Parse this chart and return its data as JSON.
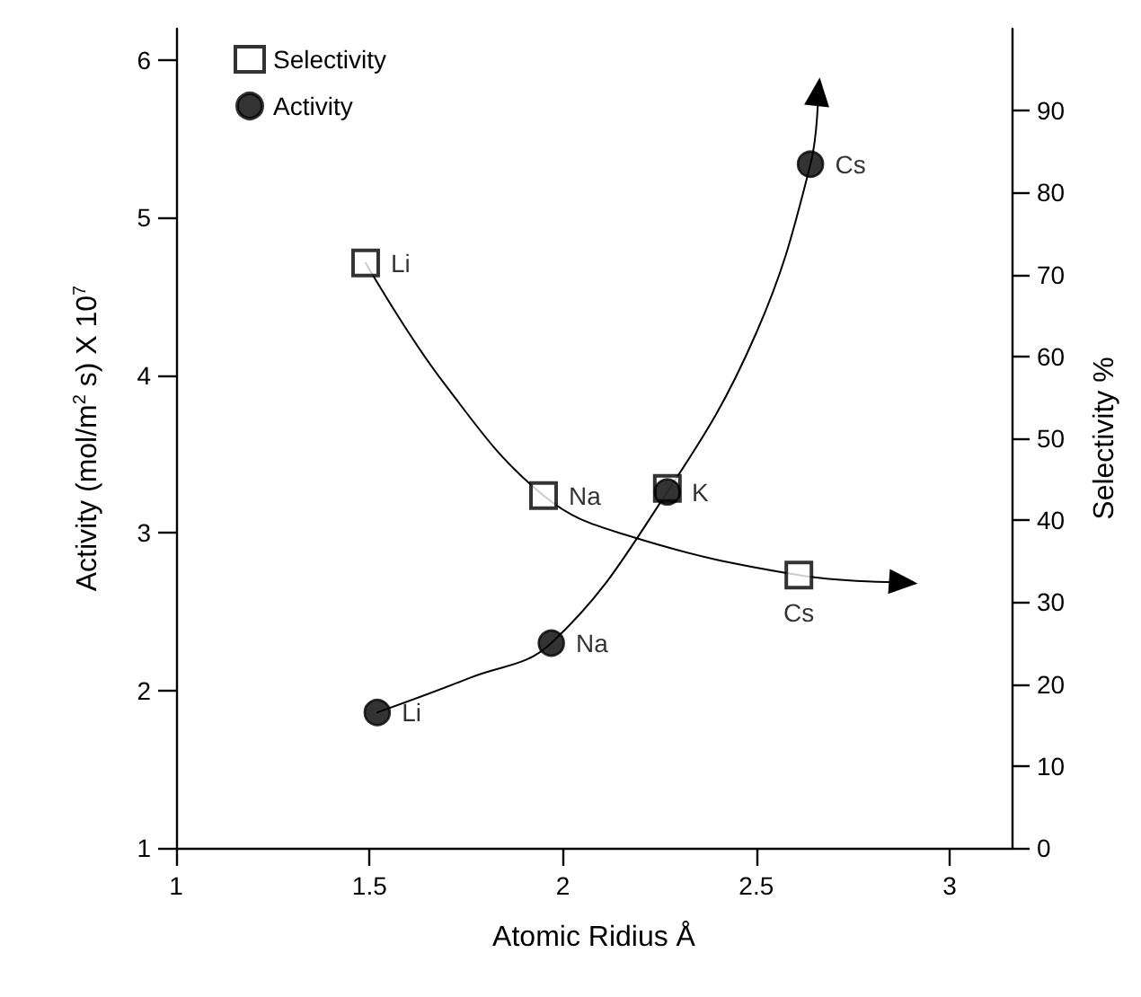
{
  "chart_data": {
    "type": "scatter",
    "xlabel": "Atomic Ridius Å",
    "ylabel": "Activity (mol/m$^{2}$ s) X 10$^{7}$",
    "y2label": "Selectivity %",
    "xlim": [
      1,
      3.16
    ],
    "xticks": [
      1,
      1.5,
      2,
      2.5,
      3
    ],
    "ylim": [
      1,
      6.2
    ],
    "yticks": [
      1,
      2,
      3,
      4,
      5,
      6
    ],
    "y2lim": [
      0,
      100
    ],
    "y2ticks": [
      0,
      10,
      20,
      30,
      40,
      50,
      60,
      70,
      80,
      90
    ],
    "grid": false,
    "legend": "top left",
    "line_style": "solid",
    "series": [
      {
        "name": "Selectivity",
        "marker": "square",
        "color": "#000000",
        "axis": "y2",
        "x": [
          1.49,
          1.95,
          2.27,
          2.61
        ],
        "values": [
          71.4,
          43.0,
          43.9,
          33.3
        ],
        "value_labels": [
          "Li",
          "Na",
          null,
          "Cs"
        ]
      },
      {
        "name": "Activity",
        "marker": "circle",
        "color": "#000000",
        "x": [
          1.52,
          1.97,
          2.27,
          2.64
        ],
        "values": [
          1.86,
          2.3,
          3.26,
          5.34
        ],
        "value_labels": [
          "Li",
          "Na",
          "K",
          "Cs"
        ]
      },
      {
        "type": "line",
        "marker": "none",
        "color": "#000000",
        "axis": "y2",
        "x": [
          1.49,
          1.69,
          1.95,
          2.17,
          2.61,
          2.88
        ],
        "values": [
          71.4,
          56.9,
          43.0,
          38.1,
          33.3,
          32.4
        ]
      },
      {
        "type": "line",
        "marker": "none",
        "color": "#000000",
        "x": [
          1.52,
          1.76,
          1.97,
          2.27,
          2.5,
          2.64,
          2.66
        ],
        "values": [
          1.86,
          2.08,
          2.3,
          3.26,
          4.27,
          5.34,
          5.8
        ]
      }
    ]
  }
}
